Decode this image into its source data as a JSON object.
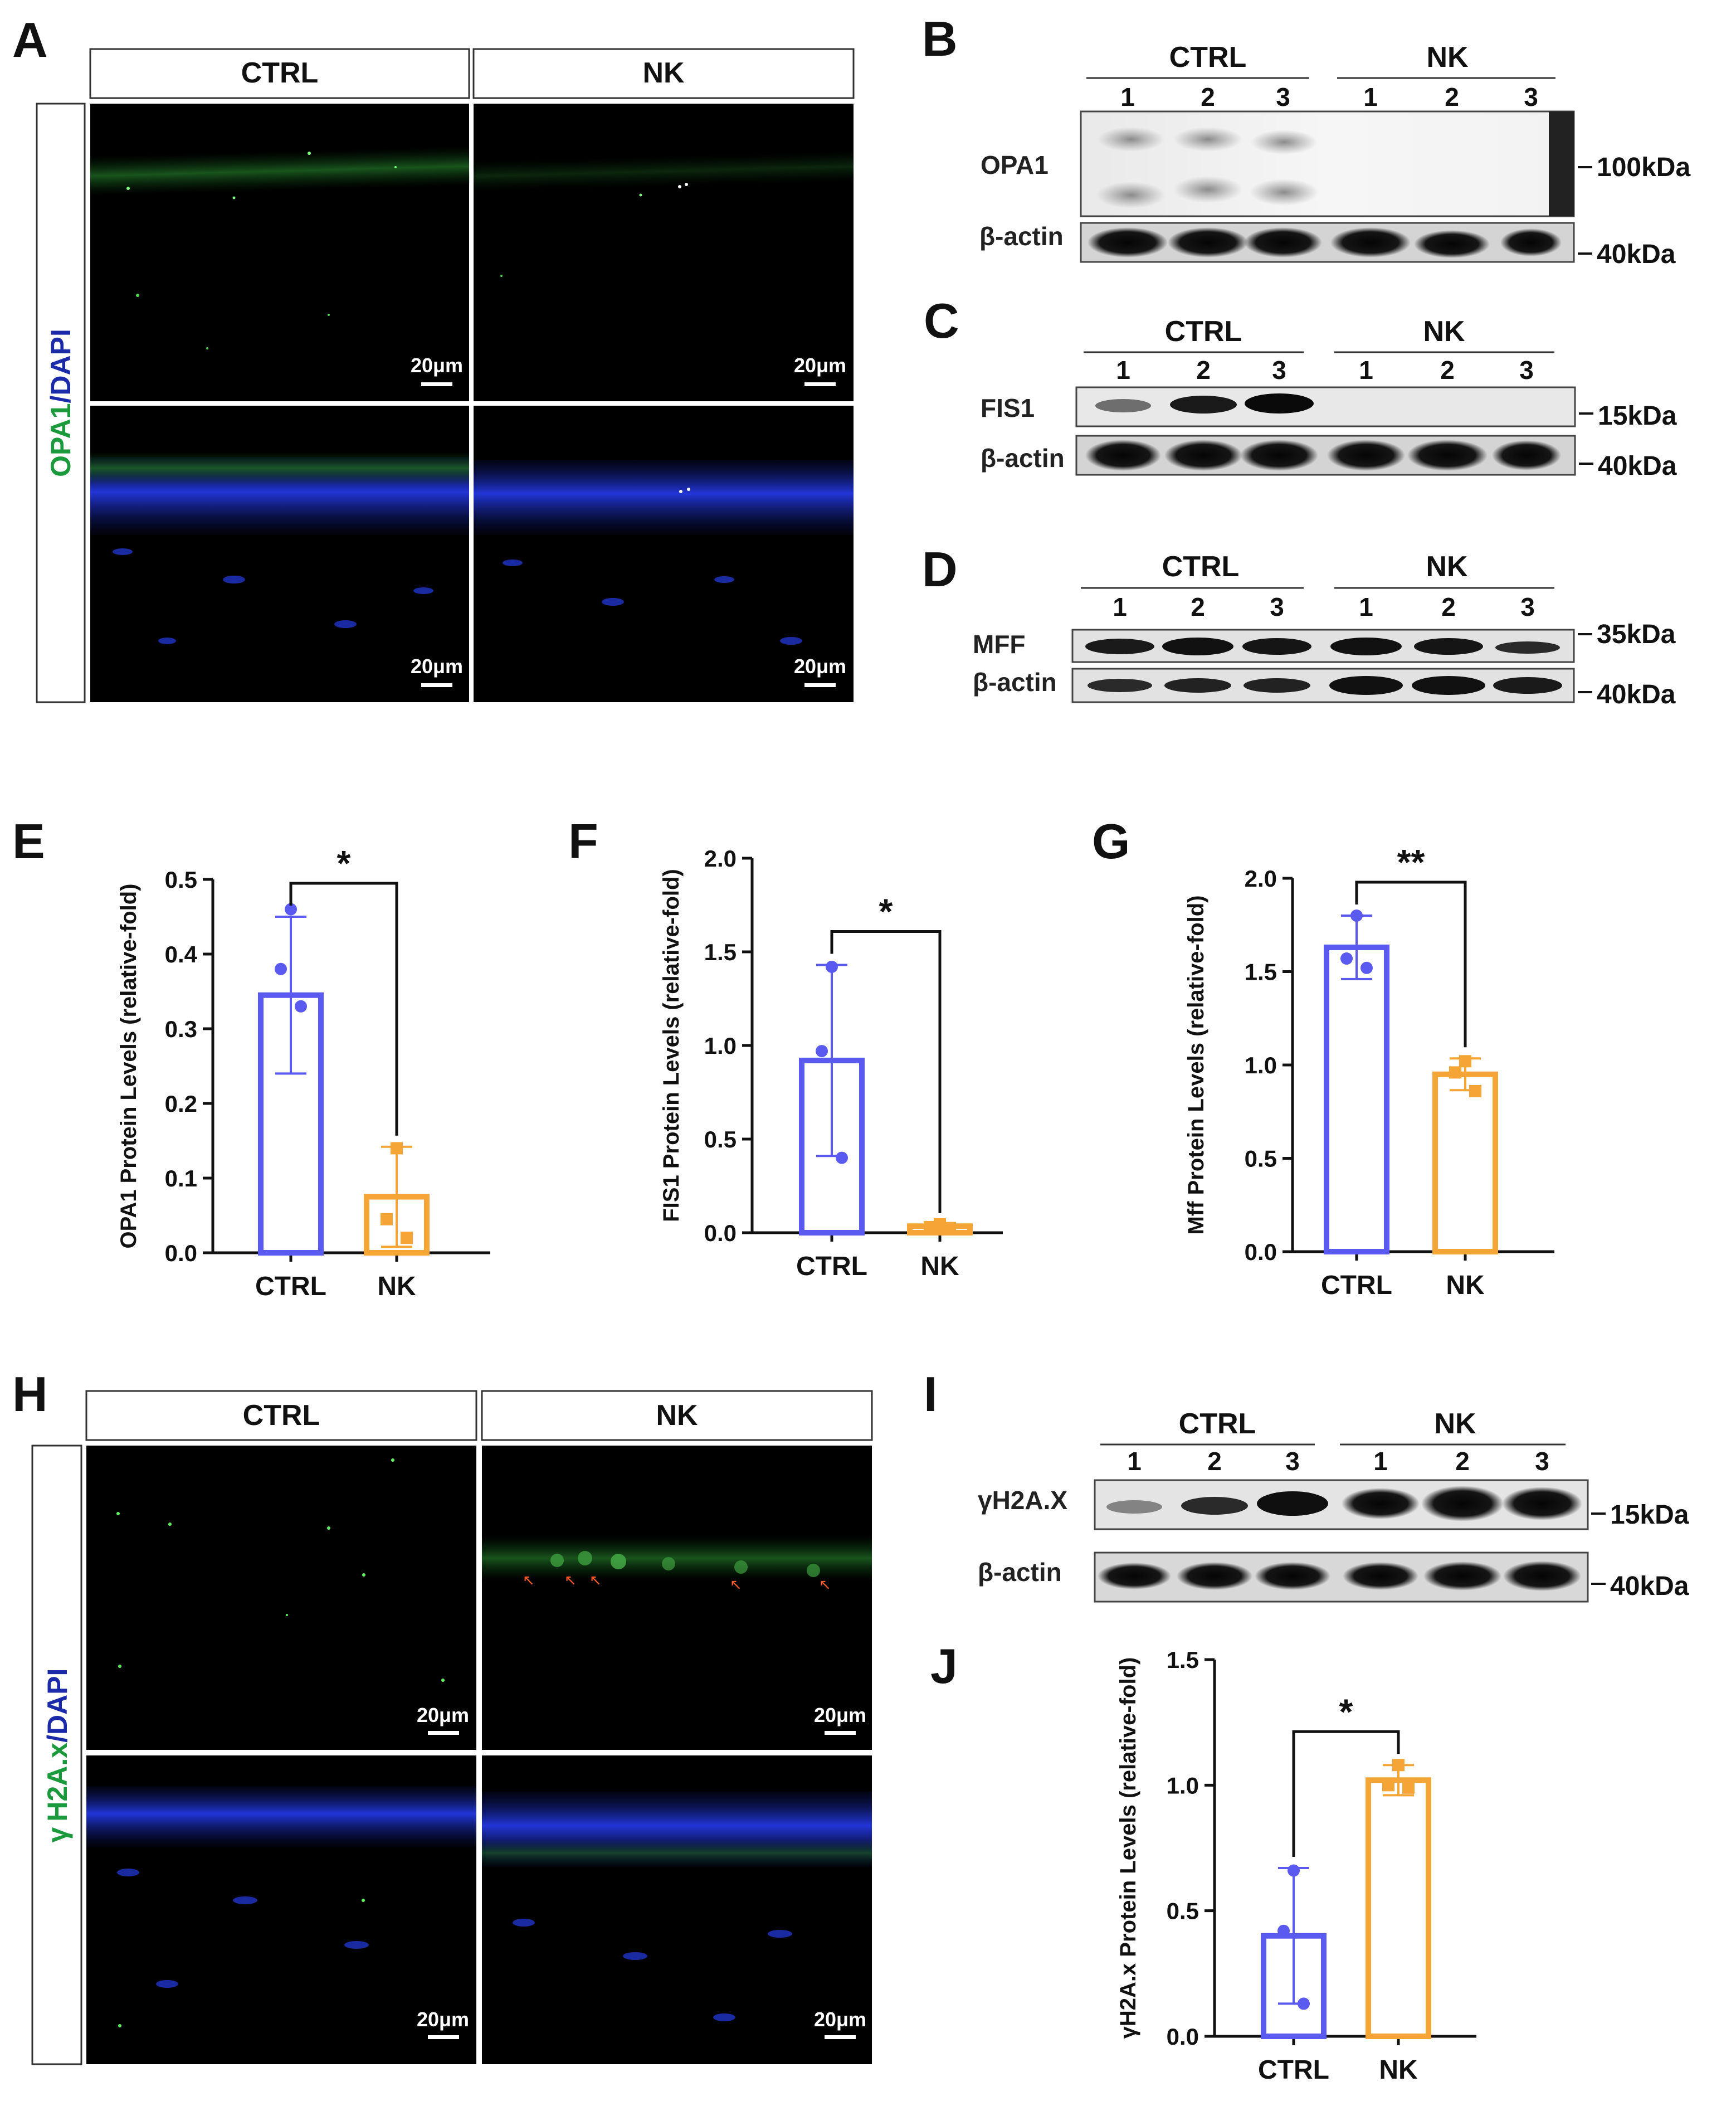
{
  "panels": {
    "A": {
      "letter": "A",
      "columns": [
        "CTRL",
        "NK"
      ],
      "side_label": {
        "stain": "OPA1",
        "sep": "/",
        "counter": "DAPI"
      },
      "scale_bar": "20μm"
    },
    "B": {
      "letter": "B",
      "groups": [
        "CTRL",
        "NK"
      ],
      "lanes": [
        "1",
        "2",
        "3",
        "1",
        "2",
        "3"
      ],
      "target": "OPA1",
      "loading": "β-actin",
      "target_kda": "100kDa",
      "loading_kda": "40kDa"
    },
    "C": {
      "letter": "C",
      "groups": [
        "CTRL",
        "NK"
      ],
      "lanes": [
        "1",
        "2",
        "3",
        "1",
        "2",
        "3"
      ],
      "target": "FIS1",
      "loading": "β-actin",
      "target_kda": "15kDa",
      "loading_kda": "40kDa"
    },
    "D": {
      "letter": "D",
      "groups": [
        "CTRL",
        "NK"
      ],
      "lanes": [
        "1",
        "2",
        "3",
        "1",
        "2",
        "3"
      ],
      "target": "MFF",
      "loading": "β-actin",
      "target_kda": "35kDa",
      "loading_kda": "40kDa"
    },
    "E": {
      "letter": "E"
    },
    "F": {
      "letter": "F"
    },
    "G": {
      "letter": "G"
    },
    "H": {
      "letter": "H",
      "columns": [
        "CTRL",
        "NK"
      ],
      "side_label": {
        "prefix": "γ",
        "stain": "H2A.x",
        "sep": "/",
        "counter": "DAPI"
      },
      "scale_bar": "20μm"
    },
    "I": {
      "letter": "I",
      "groups": [
        "CTRL",
        "NK"
      ],
      "lanes": [
        "1",
        "2",
        "3",
        "1",
        "2",
        "3"
      ],
      "target": "γH2A.X",
      "loading": "β-actin",
      "target_kda": "15kDa",
      "loading_kda": "40kDa"
    },
    "J": {
      "letter": "J"
    }
  },
  "colors": {
    "ctrl": "#5a5af0",
    "nk": "#f5a535",
    "green": "#1a9a3c",
    "blue": "#1b2aa8"
  },
  "chart_data": [
    {
      "id": "E",
      "type": "bar",
      "ylabel": "OPA1 Protein Levels (relative-fold)",
      "categories": [
        "CTRL",
        "NK"
      ],
      "values": [
        0.345,
        0.075
      ],
      "errors": [
        0.105,
        0.067
      ],
      "points": [
        [
          0.46,
          0.38,
          0.33
        ],
        [
          0.14,
          0.045,
          0.02
        ]
      ],
      "ylim": [
        0,
        0.5
      ],
      "yticks": [
        "0.0",
        "0.1",
        "0.2",
        "0.3",
        "0.4",
        "0.5"
      ],
      "significance": "*"
    },
    {
      "id": "F",
      "type": "bar",
      "ylabel": "FIS1 Protein Levels (relative-fold)",
      "categories": [
        "CTRL",
        "NK"
      ],
      "values": [
        0.92,
        0.035
      ],
      "errors": [
        0.51,
        0.01
      ],
      "points": [
        [
          1.42,
          0.97,
          0.4
        ],
        [
          0.045,
          0.03,
          0.025
        ]
      ],
      "ylim": [
        0,
        2.0
      ],
      "yticks": [
        "0.0",
        "0.5",
        "1.0",
        "1.5",
        "2.0"
      ],
      "significance": "*"
    },
    {
      "id": "G",
      "type": "bar",
      "ylabel": "Mff Protein Levels (relative-fold)",
      "categories": [
        "CTRL",
        "NK"
      ],
      "values": [
        1.63,
        0.95
      ],
      "errors": [
        0.17,
        0.085
      ],
      "points": [
        [
          1.8,
          1.57,
          1.52
        ],
        [
          1.02,
          0.96,
          0.86
        ]
      ],
      "ylim": [
        0,
        2.0
      ],
      "yticks": [
        "0.0",
        "0.5",
        "1.0",
        "1.5",
        "2.0"
      ],
      "significance": "**"
    },
    {
      "id": "J",
      "type": "bar",
      "ylabel": "γH2A.x Protein Levels (relative-fold)",
      "categories": [
        "CTRL",
        "NK"
      ],
      "values": [
        0.4,
        1.02
      ],
      "errors": [
        0.27,
        0.06
      ],
      "points": [
        [
          0.66,
          0.42,
          0.13
        ],
        [
          1.08,
          1.0,
          0.99
        ]
      ],
      "ylim": [
        0,
        1.5
      ],
      "yticks": [
        "0.0",
        "0.5",
        "1.0",
        "1.5"
      ],
      "significance": "*"
    }
  ]
}
